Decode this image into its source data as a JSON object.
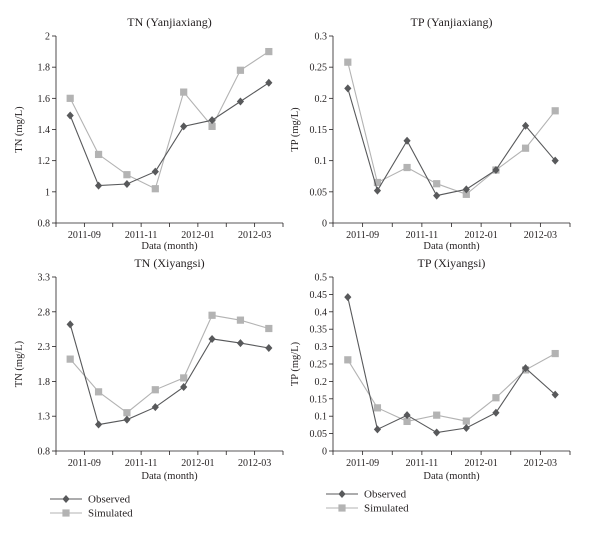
{
  "chart_data": [
    {
      "type": "line",
      "title": "TN (Yanjiaxiang)",
      "xlabel": "Data (month)",
      "ylabel": "TN (mg/L)",
      "ylim": [
        0.8,
        2.0
      ],
      "yticks": [
        "0.8",
        "1",
        "1.2",
        "1.4",
        "1.6",
        "1.8",
        "2"
      ],
      "xtick_labels": [
        "2011-09",
        "2011-11",
        "2012-01",
        "2012-03"
      ],
      "grid": false,
      "series": [
        {
          "name": "Observed",
          "values": [
            1.49,
            1.04,
            1.05,
            1.13,
            1.42,
            1.46,
            1.58,
            1.7
          ]
        },
        {
          "name": "Simulated",
          "values": [
            1.6,
            1.24,
            1.11,
            1.02,
            1.64,
            1.42,
            1.78,
            1.9
          ]
        }
      ]
    },
    {
      "type": "line",
      "title": "TP (Yanjiaxiang)",
      "xlabel": "Data (month)",
      "ylabel": "TP (mg/L)",
      "ylim": [
        0,
        0.3
      ],
      "yticks": [
        "0",
        "0.05",
        "0.1",
        "0.15",
        "0.2",
        "0.25",
        "0.3"
      ],
      "xtick_labels": [
        "2011-09",
        "2011-11",
        "2012-01",
        "2012-03"
      ],
      "grid": false,
      "series": [
        {
          "name": "Observed",
          "values": [
            0.216,
            0.052,
            0.132,
            0.044,
            0.054,
            0.085,
            0.156,
            0.1
          ]
        },
        {
          "name": "Simulated",
          "values": [
            0.258,
            0.065,
            0.089,
            0.063,
            0.046,
            0.085,
            0.12,
            0.18
          ]
        }
      ]
    },
    {
      "type": "line",
      "title": "TN (Xiyangsi)",
      "xlabel": "Data (month)",
      "ylabel": "TN (mg/L)",
      "ylim": [
        0.8,
        3.3
      ],
      "yticks": [
        "0.8",
        "1.3",
        "1.8",
        "2.3",
        "2.8",
        "3.3"
      ],
      "xtick_labels": [
        "2011-09",
        "2011-11",
        "2012-01",
        "2012-03"
      ],
      "grid": false,
      "series": [
        {
          "name": "Observed",
          "values": [
            2.62,
            1.18,
            1.25,
            1.43,
            1.72,
            2.41,
            2.35,
            2.28
          ]
        },
        {
          "name": "Simulated",
          "values": [
            2.12,
            1.65,
            1.35,
            1.68,
            1.85,
            2.75,
            2.68,
            2.56
          ]
        }
      ]
    },
    {
      "type": "line",
      "title": "TP (Xiyangsi)",
      "xlabel": "Data (month)",
      "ylabel": "TP (mg/L)",
      "ylim": [
        0,
        0.5
      ],
      "yticks": [
        "0",
        "0.05",
        "0.1",
        "0.15",
        "0.2",
        "0.25",
        "0.3",
        "0.35",
        "0.4",
        "0.45",
        "0.5"
      ],
      "xtick_labels": [
        "2011-09",
        "2011-11",
        "2012-01",
        "2012-03"
      ],
      "grid": false,
      "series": [
        {
          "name": "Observed",
          "values": [
            0.442,
            0.062,
            0.103,
            0.053,
            0.066,
            0.11,
            0.238,
            0.162
          ]
        },
        {
          "name": "Simulated",
          "values": [
            0.262,
            0.124,
            0.085,
            0.103,
            0.086,
            0.153,
            0.233,
            0.28
          ]
        }
      ]
    }
  ],
  "legend": [
    {
      "label": "Observed",
      "color": "#58595b",
      "marker": "diamond"
    },
    {
      "label": "Simulated",
      "color": "#b3b3b3",
      "marker": "square"
    }
  ]
}
